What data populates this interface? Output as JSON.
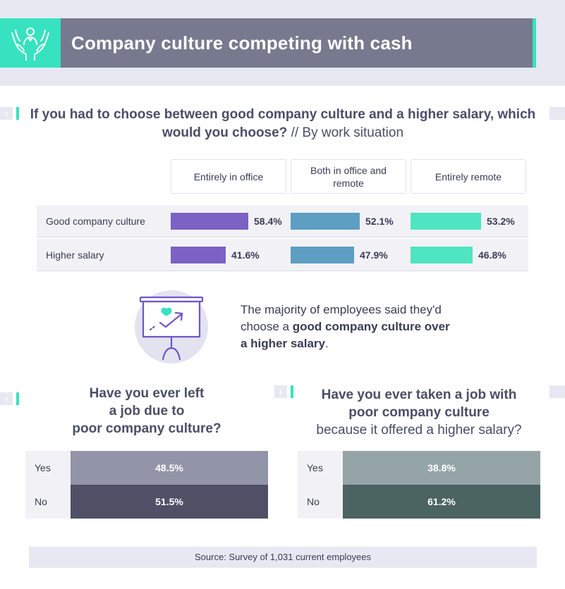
{
  "header": {
    "title": "Company culture competing with cash",
    "logo_icon": "hands-holding-person-icon"
  },
  "colors": {
    "accent": "#36e2bf",
    "title_bar": "#777a8e",
    "in_office": "#7b62c4",
    "hybrid": "#5d9ec2",
    "remote": "#4fe4c2",
    "q2_yes": "#9294a8",
    "q2_no": "#4f5066",
    "q3_yes": "#95a4a6",
    "q3_no": "#4b6361"
  },
  "question1": {
    "bold": "If you had to choose between good company culture and a higher salary, which would you choose?",
    "light": " // By work situation"
  },
  "chart_data": [
    {
      "type": "bar",
      "categories": [
        "Good company culture",
        "Higher salary"
      ],
      "series": [
        {
          "name": "Entirely in office",
          "values": [
            58.4,
            41.6
          ],
          "labels": [
            "58.4%",
            "41.6%"
          ]
        },
        {
          "name": "Both in office and remote",
          "values": [
            52.1,
            47.9
          ],
          "labels": [
            "52.1%",
            "47.9%"
          ]
        },
        {
          "name": "Entirely remote",
          "values": [
            53.2,
            46.8
          ],
          "labels": [
            "53.2%",
            "46.8%"
          ]
        }
      ],
      "ylim": [
        0,
        100
      ]
    },
    {
      "type": "bar",
      "title": "Have you ever left a job due to poor company culture?",
      "categories": [
        "Yes",
        "No"
      ],
      "values": [
        48.5,
        51.5
      ],
      "labels": [
        "48.5%",
        "51.5%"
      ]
    },
    {
      "type": "bar",
      "title": "Have you ever taken a job with poor company culture because it offered a higher salary?",
      "categories": [
        "Yes",
        "No"
      ],
      "values": [
        38.8,
        61.2
      ],
      "labels": [
        "38.8%",
        "61.2%"
      ]
    }
  ],
  "takeaway": {
    "pre": "The majority of employees said they'd choose a ",
    "bold": "good company culture over a higher salary",
    "post": ".",
    "icon": "presentation-chart-heart-icon"
  },
  "question2": {
    "line1": "Have you ever left",
    "line2": "a job due to",
    "line3": "poor company culture?"
  },
  "question3": {
    "line1": "Have you ever taken a job with",
    "line2": "poor company culture",
    "line3": "because it offered a higher salary?"
  },
  "source": "Source: Survey of 1,031 current employees"
}
